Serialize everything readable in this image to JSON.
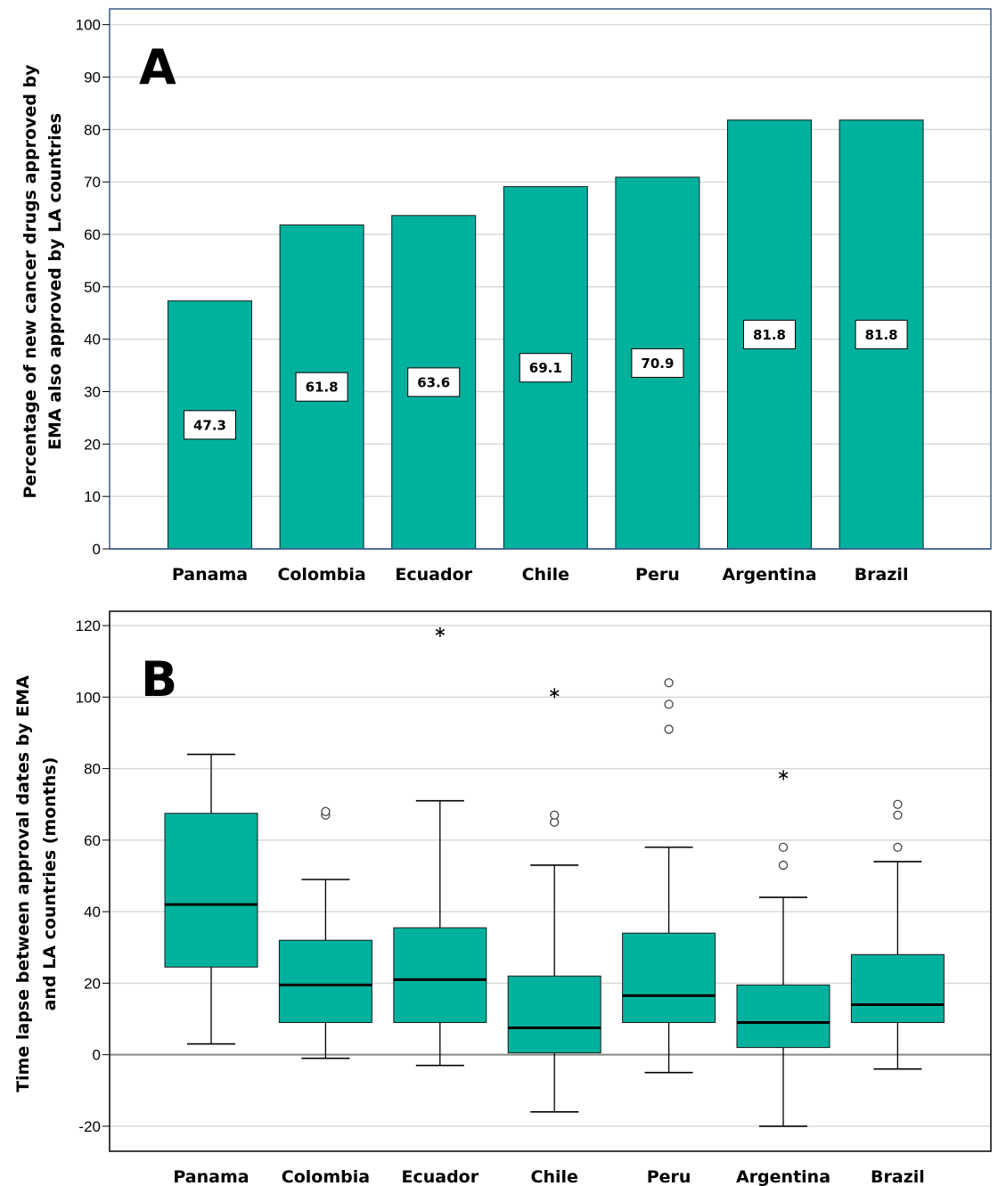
{
  "chart_data": [
    {
      "type": "bar",
      "panel": "A",
      "categories": [
        "Panama",
        "Colombia",
        "Ecuador",
        "Chile",
        "Peru",
        "Argentina",
        "Brazil"
      ],
      "values": [
        47.3,
        61.8,
        63.6,
        69.1,
        70.9,
        81.8,
        81.8
      ],
      "data_labels": [
        "47.3",
        "61.8",
        "63.6",
        "69.1",
        "70.9",
        "81.8",
        "81.8"
      ],
      "ylabel_lines": [
        "Percentage of new cancer drugs approved by",
        "EMA also approved by LA countries"
      ],
      "xlabel": "",
      "ylim": [
        0,
        103
      ],
      "yticks": [
        0,
        10,
        20,
        30,
        40,
        50,
        60,
        70,
        80,
        90,
        100
      ],
      "grid": true,
      "colors": {
        "bar": "#00b19d",
        "grid": "#d9d9d9",
        "frame": "#3a5a8c"
      }
    },
    {
      "type": "box",
      "panel": "B",
      "categories": [
        "Panama",
        "Colombia",
        "Ecuador",
        "Chile",
        "Peru",
        "Argentina",
        "Brazil"
      ],
      "boxes": [
        {
          "whisker_low": 3,
          "q1": 24.5,
          "median": 42,
          "q3": 67.5,
          "whisker_high": 84,
          "outliers": [],
          "extremes": []
        },
        {
          "whisker_low": -1,
          "q1": 9,
          "median": 19.5,
          "q3": 32,
          "whisker_high": 49,
          "outliers": [
            67,
            68
          ],
          "extremes": []
        },
        {
          "whisker_low": -3,
          "q1": 9,
          "median": 21,
          "q3": 35.5,
          "whisker_high": 71,
          "outliers": [],
          "extremes": [
            119
          ]
        },
        {
          "whisker_low": -16,
          "q1": 0.5,
          "median": 7.5,
          "q3": 22,
          "whisker_high": 53,
          "outliers": [
            65,
            67
          ],
          "extremes": [
            102
          ]
        },
        {
          "whisker_low": -5,
          "q1": 9,
          "median": 16.5,
          "q3": 34,
          "whisker_high": 58,
          "outliers": [
            91,
            98,
            104
          ],
          "extremes": []
        },
        {
          "whisker_low": -20,
          "q1": 2,
          "median": 9,
          "q3": 19.5,
          "whisker_high": 44,
          "outliers": [
            53,
            58
          ],
          "extremes": [
            79
          ]
        },
        {
          "whisker_low": -4,
          "q1": 9,
          "median": 14,
          "q3": 28,
          "whisker_high": 54,
          "outliers": [
            58,
            67,
            70
          ],
          "extremes": []
        }
      ],
      "ylabel_lines": [
        "Time lapse between approval dates by EMA",
        "and LA countries (months)"
      ],
      "xlabel": "",
      "ylim": [
        -27,
        124
      ],
      "yticks": [
        -20,
        0,
        20,
        40,
        60,
        80,
        100,
        120
      ],
      "grid": true,
      "colors": {
        "box": "#00b19d",
        "grid": "#d9d9d9",
        "frame": "#000000"
      }
    }
  ]
}
